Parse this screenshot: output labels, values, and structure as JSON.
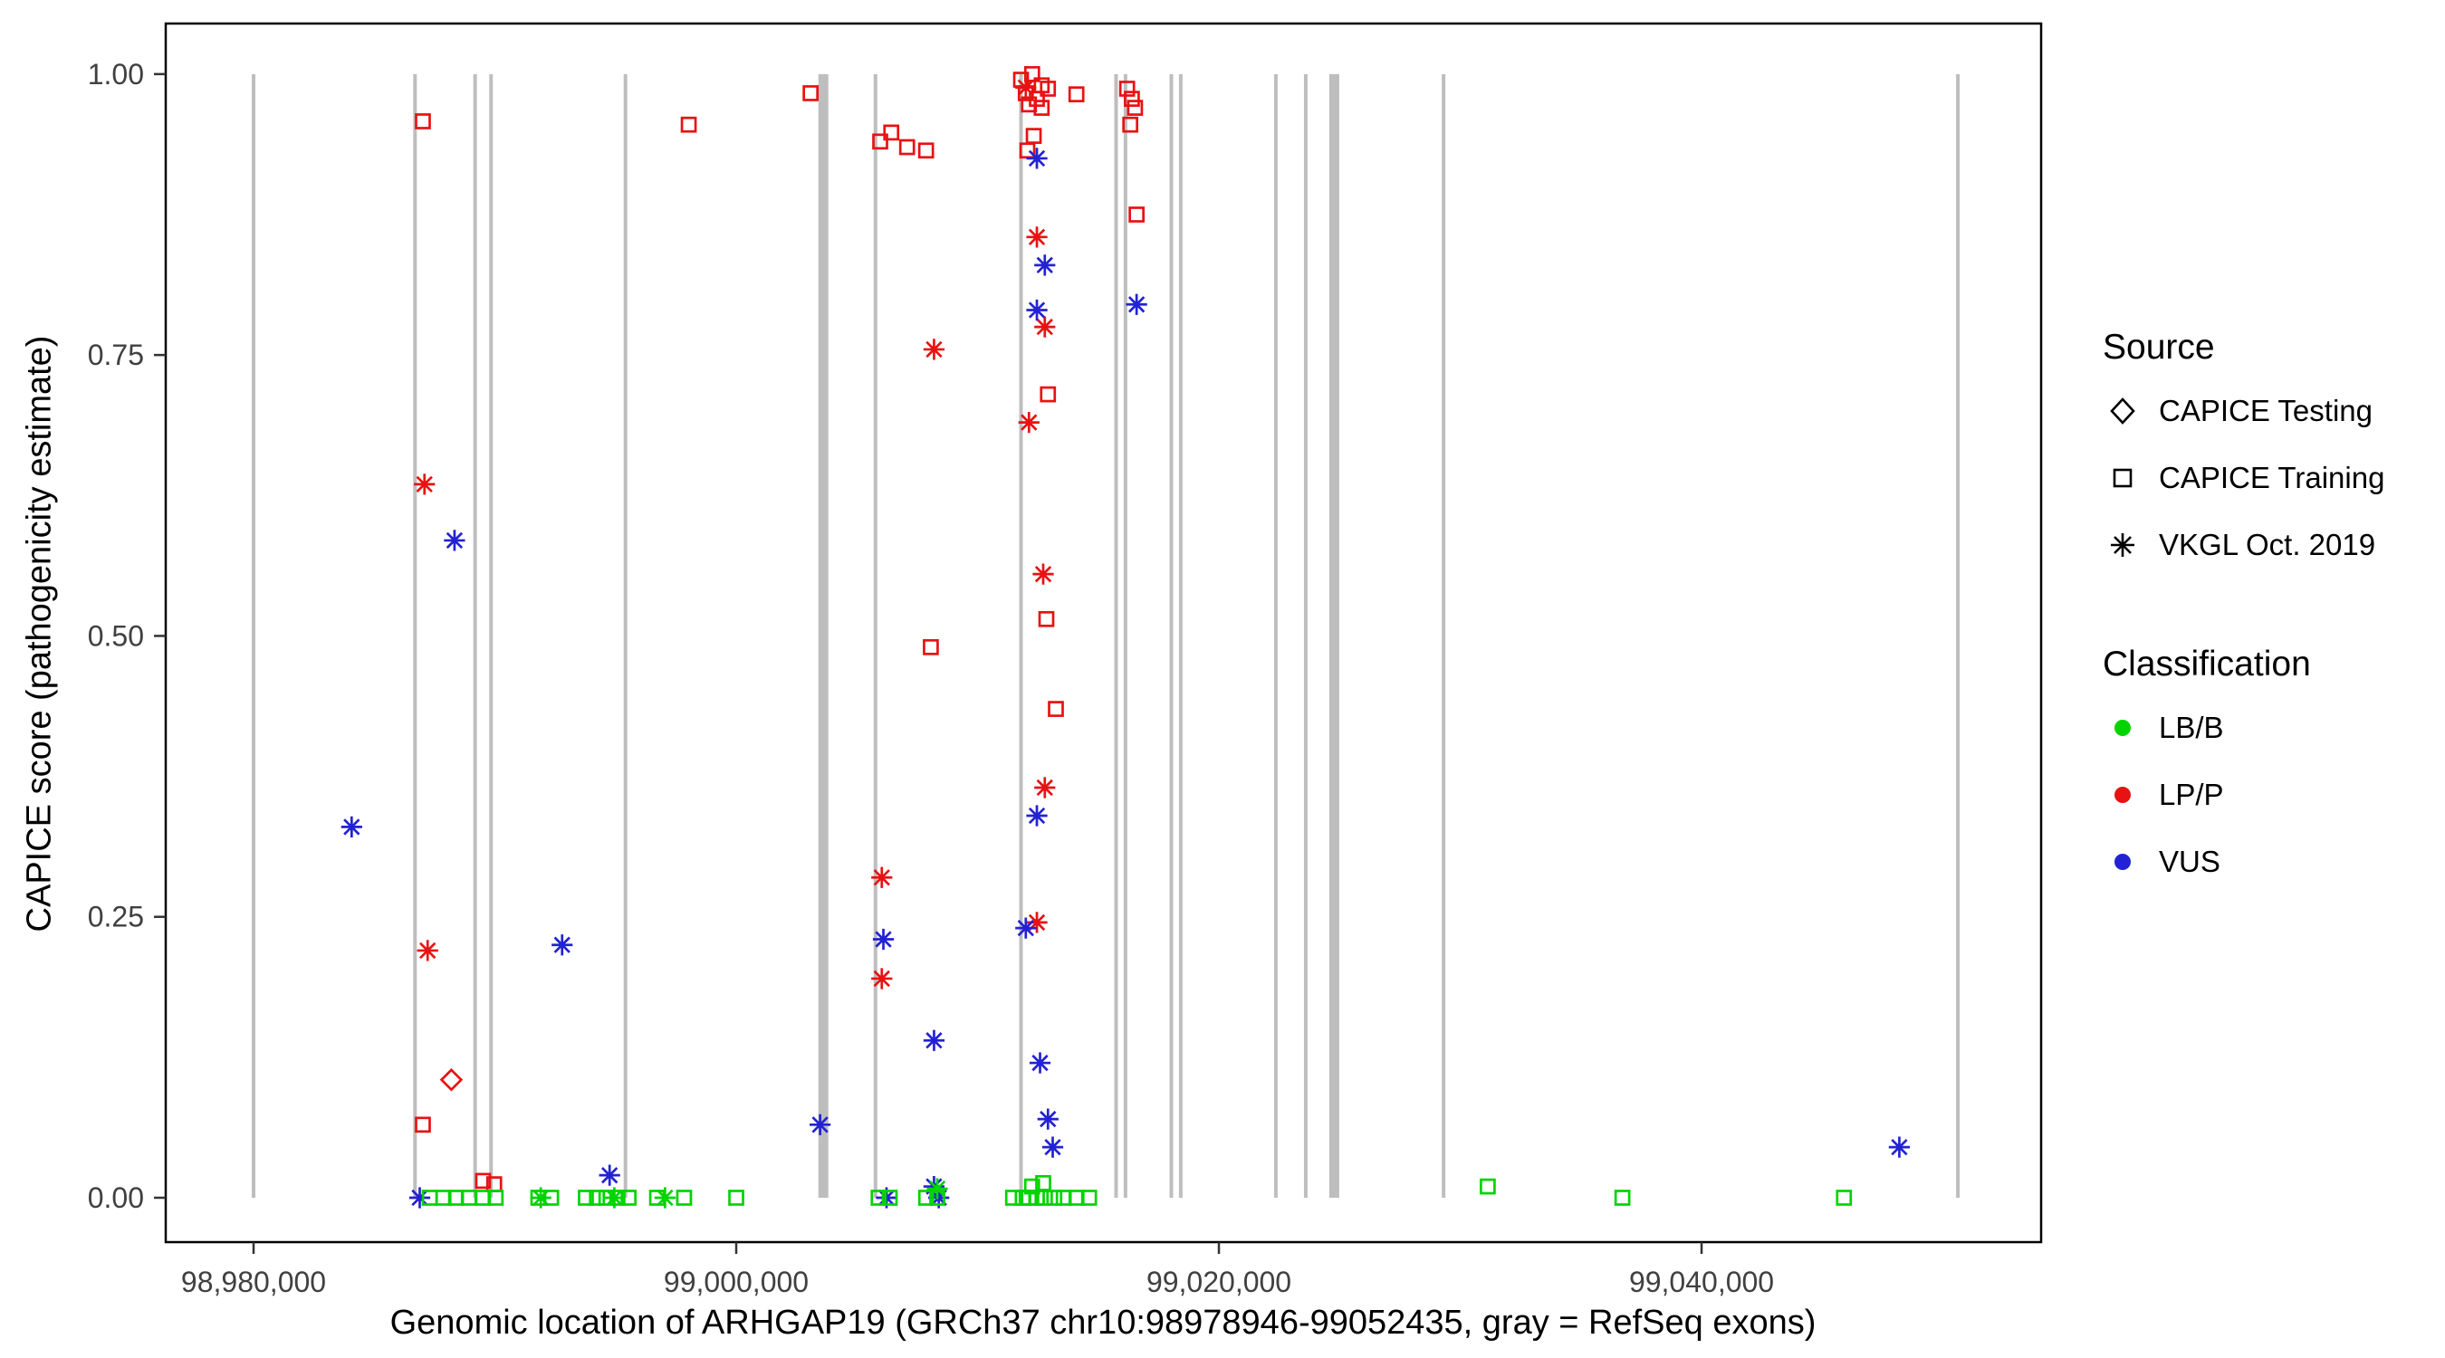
{
  "chart_data": {
    "type": "scatter",
    "title": "",
    "xlabel": "Genomic location of ARHGAP19 (GRCh37 chr10:98978946-99052435, gray = RefSeq exons)",
    "ylabel": "CAPICE score (pathogenicity estimate)",
    "xlim": [
      98976360,
      99054070
    ],
    "ylim": [
      -0.0395,
      1.045
    ],
    "grid": false,
    "legend_position": "right",
    "x_ticks": [
      {
        "value": 98980000,
        "label": "98,980,000"
      },
      {
        "value": 99000000,
        "label": "99,000,000"
      },
      {
        "value": 99020000,
        "label": "99,020,000"
      },
      {
        "value": 99040000,
        "label": "99,040,000"
      }
    ],
    "y_ticks": [
      {
        "value": 0.0,
        "label": "0.00"
      },
      {
        "value": 0.25,
        "label": "0.25"
      },
      {
        "value": 0.5,
        "label": "0.50"
      },
      {
        "value": 0.75,
        "label": "0.75"
      },
      {
        "value": 1.0,
        "label": "1.00"
      }
    ],
    "colors": {
      "LB/B": "#00D400",
      "LP/P": "#E81212",
      "VUS": "#2222D4",
      "exon": "#BEBEBE"
    },
    "exons": [
      {
        "x": 98980000,
        "w": 4
      },
      {
        "x": 98986690,
        "w": 4
      },
      {
        "x": 98989180,
        "w": 4
      },
      {
        "x": 98989840,
        "w": 4
      },
      {
        "x": 98995410,
        "w": 4
      },
      {
        "x": 99003610,
        "w": 11
      },
      {
        "x": 99005770,
        "w": 4
      },
      {
        "x": 99011800,
        "w": 4
      },
      {
        "x": 99015740,
        "w": 4
      },
      {
        "x": 99016130,
        "w": 4
      },
      {
        "x": 99018030,
        "w": 4
      },
      {
        "x": 99018420,
        "w": 4
      },
      {
        "x": 99022360,
        "w": 4
      },
      {
        "x": 99023600,
        "w": 4
      },
      {
        "x": 99024780,
        "w": 11
      },
      {
        "x": 99029310,
        "w": 4
      },
      {
        "x": 99050620,
        "w": 4
      }
    ],
    "point_format": [
      "x",
      "y",
      "source",
      "class"
    ],
    "source_shapes": {
      "testing": "diamond",
      "training": "square",
      "vkgl": "asterisk"
    },
    "points": [
      [
        98988196,
        0.105,
        "testing",
        "LP/P"
      ],
      [
        98987016,
        0.958,
        "training",
        "LP/P"
      ],
      [
        98998032,
        0.955,
        "training",
        "LP/P"
      ],
      [
        99003082,
        0.983,
        "training",
        "LP/P"
      ],
      [
        99005966,
        0.94,
        "training",
        "LP/P"
      ],
      [
        99006425,
        0.948,
        "training",
        "LP/P"
      ],
      [
        99007080,
        0.935,
        "training",
        "LP/P"
      ],
      [
        99007867,
        0.932,
        "training",
        "LP/P"
      ],
      [
        99011802,
        0.995,
        "training",
        "LP/P"
      ],
      [
        99012261,
        1.0,
        "training",
        "LP/P"
      ],
      [
        99012655,
        0.99,
        "training",
        "LP/P"
      ],
      [
        99011999,
        0.983,
        "training",
        "LP/P"
      ],
      [
        99012458,
        0.978,
        "training",
        "LP/P"
      ],
      [
        99012917,
        0.987,
        "training",
        "LP/P"
      ],
      [
        99012130,
        0.973,
        "training",
        "LP/P"
      ],
      [
        99012655,
        0.97,
        "training",
        "LP/P"
      ],
      [
        99012327,
        0.945,
        "training",
        "LP/P"
      ],
      [
        99012064,
        0.932,
        "training",
        "LP/P"
      ],
      [
        99014097,
        0.982,
        "training",
        "LP/P"
      ],
      [
        99016197,
        0.987,
        "training",
        "LP/P"
      ],
      [
        99016394,
        0.978,
        "training",
        "LP/P"
      ],
      [
        99016525,
        0.97,
        "training",
        "LP/P"
      ],
      [
        99016328,
        0.955,
        "training",
        "LP/P"
      ],
      [
        99016590,
        0.875,
        "training",
        "LP/P"
      ],
      [
        99012917,
        0.715,
        "training",
        "LP/P"
      ],
      [
        99008064,
        0.49,
        "training",
        "LP/P"
      ],
      [
        99013245,
        0.435,
        "training",
        "LP/P"
      ],
      [
        99012851,
        0.515,
        "training",
        "LP/P"
      ],
      [
        98987016,
        0.065,
        "training",
        "LP/P"
      ],
      [
        98989510,
        0.015,
        "training",
        "LP/P"
      ],
      [
        98989970,
        0.012,
        "training",
        "LP/P"
      ],
      [
        99011999,
        0.988,
        "vkgl",
        "LP/P"
      ],
      [
        98987082,
        0.635,
        "vkgl",
        "LP/P"
      ],
      [
        98987213,
        0.22,
        "vkgl",
        "LP/P"
      ],
      [
        99012458,
        0.855,
        "vkgl",
        "LP/P"
      ],
      [
        99012786,
        0.775,
        "vkgl",
        "LP/P"
      ],
      [
        99008196,
        0.755,
        "vkgl",
        "LP/P"
      ],
      [
        99012130,
        0.69,
        "vkgl",
        "LP/P"
      ],
      [
        99012720,
        0.555,
        "vkgl",
        "LP/P"
      ],
      [
        99012786,
        0.365,
        "vkgl",
        "LP/P"
      ],
      [
        99006032,
        0.285,
        "vkgl",
        "LP/P"
      ],
      [
        99012458,
        0.245,
        "vkgl",
        "LP/P"
      ],
      [
        99006032,
        0.195,
        "vkgl",
        "LP/P"
      ],
      [
        98984065,
        0.33,
        "vkgl",
        "VUS"
      ],
      [
        98988327,
        0.585,
        "vkgl",
        "VUS"
      ],
      [
        98992786,
        0.225,
        "vkgl",
        "VUS"
      ],
      [
        98994753,
        0.02,
        "vkgl",
        "VUS"
      ],
      [
        99003475,
        0.065,
        "vkgl",
        "VUS"
      ],
      [
        99006098,
        0.23,
        "vkgl",
        "VUS"
      ],
      [
        99008196,
        0.14,
        "vkgl",
        "VUS"
      ],
      [
        99012458,
        0.925,
        "vkgl",
        "VUS"
      ],
      [
        99012786,
        0.83,
        "vkgl",
        "VUS"
      ],
      [
        99012458,
        0.79,
        "vkgl",
        "VUS"
      ],
      [
        99016590,
        0.795,
        "vkgl",
        "VUS"
      ],
      [
        99012458,
        0.34,
        "vkgl",
        "VUS"
      ],
      [
        99011999,
        0.24,
        "vkgl",
        "VUS"
      ],
      [
        99012589,
        0.12,
        "vkgl",
        "VUS"
      ],
      [
        99012917,
        0.07,
        "vkgl",
        "VUS"
      ],
      [
        99013114,
        0.045,
        "vkgl",
        "VUS"
      ],
      [
        99048195,
        0.045,
        "vkgl",
        "VUS"
      ],
      [
        98986885,
        0.0,
        "vkgl",
        "VUS"
      ],
      [
        99006228,
        0.0,
        "vkgl",
        "VUS"
      ],
      [
        99008195,
        0.01,
        "vkgl",
        "VUS"
      ],
      [
        99008392,
        0.0,
        "vkgl",
        "VUS"
      ],
      [
        98991900,
        0.0,
        "vkgl",
        "LB/B"
      ],
      [
        98994950,
        0.0,
        "vkgl",
        "LB/B"
      ],
      [
        98997050,
        0.0,
        "vkgl",
        "LB/B"
      ],
      [
        99008330,
        0.008,
        "vkgl",
        "LB/B"
      ],
      [
        98987300,
        0.0,
        "training",
        "LB/B"
      ],
      [
        98987870,
        0.0,
        "training",
        "LB/B"
      ],
      [
        98988390,
        0.0,
        "training",
        "LB/B"
      ],
      [
        98988920,
        0.0,
        "training",
        "LB/B"
      ],
      [
        98989510,
        0.0,
        "training",
        "LB/B"
      ],
      [
        98990030,
        0.0,
        "training",
        "LB/B"
      ],
      [
        98991800,
        0.0,
        "training",
        "LB/B"
      ],
      [
        98992330,
        0.0,
        "training",
        "LB/B"
      ],
      [
        98993770,
        0.0,
        "training",
        "LB/B"
      ],
      [
        98994230,
        0.0,
        "training",
        "LB/B"
      ],
      [
        98994620,
        0.0,
        "training",
        "LB/B"
      ],
      [
        98995080,
        0.0,
        "training",
        "LB/B"
      ],
      [
        98995540,
        0.0,
        "training",
        "LB/B"
      ],
      [
        98996720,
        0.0,
        "training",
        "LB/B"
      ],
      [
        98997840,
        0.0,
        "training",
        "LB/B"
      ],
      [
        99000000,
        0.0,
        "training",
        "LB/B"
      ],
      [
        99005900,
        0.0,
        "training",
        "LB/B"
      ],
      [
        99006360,
        0.0,
        "training",
        "LB/B"
      ],
      [
        99007870,
        0.0,
        "training",
        "LB/B"
      ],
      [
        99008330,
        0.0,
        "training",
        "LB/B"
      ],
      [
        99011470,
        0.0,
        "training",
        "LB/B"
      ],
      [
        99011870,
        0.0,
        "training",
        "LB/B"
      ],
      [
        99012130,
        0.0,
        "training",
        "LB/B"
      ],
      [
        99012260,
        0.01,
        "training",
        "LB/B"
      ],
      [
        99012458,
        0.0,
        "training",
        "LB/B"
      ],
      [
        99012720,
        0.013,
        "training",
        "LB/B"
      ],
      [
        99012790,
        0.0,
        "training",
        "LB/B"
      ],
      [
        99013180,
        0.0,
        "training",
        "LB/B"
      ],
      [
        99013570,
        0.0,
        "training",
        "LB/B"
      ],
      [
        99014100,
        0.0,
        "training",
        "LB/B"
      ],
      [
        99014620,
        0.0,
        "training",
        "LB/B"
      ],
      [
        99031140,
        0.01,
        "training",
        "LB/B"
      ],
      [
        99036720,
        0.0,
        "training",
        "LB/B"
      ],
      [
        99045900,
        0.0,
        "training",
        "LB/B"
      ]
    ]
  },
  "axis": {
    "x_title": "Genomic location of ARHGAP19 (GRCh37 chr10:98978946-99052435, gray = RefSeq exons)",
    "y_title": "CAPICE score (pathogenicity estimate)"
  },
  "legend": {
    "source": {
      "title": "Source",
      "items": [
        {
          "label": "CAPICE Testing",
          "shape": "diamond"
        },
        {
          "label": "CAPICE Training",
          "shape": "square"
        },
        {
          "label": "VKGL Oct. 2019",
          "shape": "asterisk"
        }
      ]
    },
    "classification": {
      "title": "Classification",
      "items": [
        {
          "label": "LB/B",
          "color_key": "LB/B"
        },
        {
          "label": "LP/P",
          "color_key": "LP/P"
        },
        {
          "label": "VUS",
          "color_key": "VUS"
        }
      ]
    }
  }
}
